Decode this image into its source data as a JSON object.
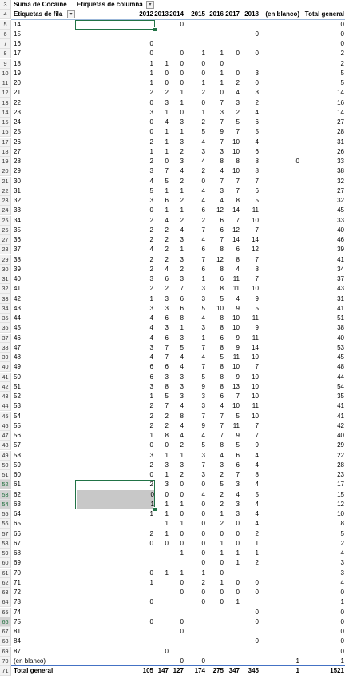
{
  "pivot": {
    "value_label": "Suma de Cocaine",
    "column_labels_header": "Etiquetas de columna",
    "row_labels_header": "Etiquetas de fila",
    "years": [
      "2012",
      "2013",
      "2014",
      "2015",
      "2016",
      "2017",
      "2018",
      "(en blanco)",
      "Total general"
    ],
    "header_row_numbers": [
      "3",
      "4"
    ],
    "rows": [
      {
        "rn": "5",
        "label": "14",
        "v": [
          "",
          "",
          "0",
          "",
          "",
          "",
          "",
          "",
          "0"
        ]
      },
      {
        "rn": "6",
        "label": "15",
        "v": [
          "",
          "",
          "",
          "",
          "",
          "",
          "0",
          "",
          "0"
        ]
      },
      {
        "rn": "7",
        "label": "16",
        "v": [
          "0",
          "",
          "",
          "",
          "",
          "",
          "",
          "",
          "0"
        ]
      },
      {
        "rn": "8",
        "label": "17",
        "v": [
          "0",
          "",
          "0",
          "1",
          "1",
          "0",
          "0",
          "",
          "2"
        ]
      },
      {
        "rn": "9",
        "label": "18",
        "v": [
          "1",
          "1",
          "0",
          "0",
          "0",
          "",
          "",
          "",
          "2"
        ]
      },
      {
        "rn": "10",
        "label": "19",
        "v": [
          "1",
          "0",
          "0",
          "0",
          "1",
          "0",
          "3",
          "",
          "5"
        ]
      },
      {
        "rn": "11",
        "label": "20",
        "v": [
          "1",
          "0",
          "0",
          "1",
          "1",
          "2",
          "0",
          "",
          "5"
        ]
      },
      {
        "rn": "12",
        "label": "21",
        "v": [
          "2",
          "2",
          "1",
          "2",
          "0",
          "4",
          "3",
          "",
          "14"
        ]
      },
      {
        "rn": "13",
        "label": "22",
        "v": [
          "0",
          "3",
          "1",
          "0",
          "7",
          "3",
          "2",
          "",
          "16"
        ]
      },
      {
        "rn": "14",
        "label": "23",
        "v": [
          "3",
          "1",
          "0",
          "1",
          "3",
          "2",
          "4",
          "",
          "14"
        ]
      },
      {
        "rn": "15",
        "label": "24",
        "v": [
          "0",
          "4",
          "3",
          "2",
          "7",
          "5",
          "6",
          "",
          "27"
        ]
      },
      {
        "rn": "16",
        "label": "25",
        "v": [
          "0",
          "1",
          "1",
          "5",
          "9",
          "7",
          "5",
          "",
          "28"
        ]
      },
      {
        "rn": "17",
        "label": "26",
        "v": [
          "2",
          "1",
          "3",
          "4",
          "7",
          "10",
          "4",
          "",
          "31"
        ]
      },
      {
        "rn": "18",
        "label": "27",
        "v": [
          "1",
          "1",
          "2",
          "3",
          "3",
          "10",
          "6",
          "",
          "26"
        ]
      },
      {
        "rn": "19",
        "label": "28",
        "v": [
          "2",
          "0",
          "3",
          "4",
          "8",
          "8",
          "8",
          "0",
          "33"
        ]
      },
      {
        "rn": "20",
        "label": "29",
        "v": [
          "3",
          "7",
          "4",
          "2",
          "4",
          "10",
          "8",
          "",
          "38"
        ]
      },
      {
        "rn": "21",
        "label": "30",
        "v": [
          "4",
          "5",
          "2",
          "0",
          "7",
          "7",
          "7",
          "",
          "32"
        ]
      },
      {
        "rn": "22",
        "label": "31",
        "v": [
          "5",
          "1",
          "1",
          "4",
          "3",
          "7",
          "6",
          "",
          "27"
        ]
      },
      {
        "rn": "23",
        "label": "32",
        "v": [
          "3",
          "6",
          "2",
          "4",
          "4",
          "8",
          "5",
          "",
          "32"
        ]
      },
      {
        "rn": "24",
        "label": "33",
        "v": [
          "0",
          "1",
          "1",
          "6",
          "12",
          "14",
          "11",
          "",
          "45"
        ]
      },
      {
        "rn": "25",
        "label": "34",
        "v": [
          "2",
          "4",
          "2",
          "2",
          "6",
          "7",
          "10",
          "",
          "33"
        ]
      },
      {
        "rn": "26",
        "label": "35",
        "v": [
          "2",
          "2",
          "4",
          "7",
          "6",
          "12",
          "7",
          "",
          "40"
        ]
      },
      {
        "rn": "27",
        "label": "36",
        "v": [
          "2",
          "2",
          "3",
          "4",
          "7",
          "14",
          "14",
          "",
          "46"
        ]
      },
      {
        "rn": "28",
        "label": "37",
        "v": [
          "4",
          "2",
          "1",
          "6",
          "8",
          "6",
          "12",
          "",
          "39"
        ]
      },
      {
        "rn": "29",
        "label": "38",
        "v": [
          "2",
          "2",
          "3",
          "7",
          "12",
          "8",
          "7",
          "",
          "41"
        ]
      },
      {
        "rn": "30",
        "label": "39",
        "v": [
          "2",
          "4",
          "2",
          "6",
          "8",
          "4",
          "8",
          "",
          "34"
        ]
      },
      {
        "rn": "31",
        "label": "40",
        "v": [
          "3",
          "6",
          "3",
          "1",
          "6",
          "11",
          "7",
          "",
          "37"
        ]
      },
      {
        "rn": "32",
        "label": "41",
        "v": [
          "2",
          "2",
          "7",
          "3",
          "8",
          "11",
          "10",
          "",
          "43"
        ]
      },
      {
        "rn": "33",
        "label": "42",
        "v": [
          "1",
          "3",
          "6",
          "3",
          "5",
          "4",
          "9",
          "",
          "31"
        ]
      },
      {
        "rn": "34",
        "label": "43",
        "v": [
          "3",
          "3",
          "6",
          "5",
          "10",
          "9",
          "5",
          "",
          "41"
        ]
      },
      {
        "rn": "35",
        "label": "44",
        "v": [
          "4",
          "6",
          "8",
          "4",
          "8",
          "10",
          "11",
          "",
          "51"
        ]
      },
      {
        "rn": "36",
        "label": "45",
        "v": [
          "4",
          "3",
          "1",
          "3",
          "8",
          "10",
          "9",
          "",
          "38"
        ]
      },
      {
        "rn": "37",
        "label": "46",
        "v": [
          "4",
          "6",
          "3",
          "1",
          "6",
          "9",
          "11",
          "",
          "40"
        ]
      },
      {
        "rn": "38",
        "label": "47",
        "v": [
          "3",
          "7",
          "5",
          "7",
          "8",
          "9",
          "14",
          "",
          "53"
        ]
      },
      {
        "rn": "39",
        "label": "48",
        "v": [
          "4",
          "7",
          "4",
          "4",
          "5",
          "11",
          "10",
          "",
          "45"
        ]
      },
      {
        "rn": "40",
        "label": "49",
        "v": [
          "6",
          "6",
          "4",
          "7",
          "8",
          "10",
          "7",
          "",
          "48"
        ]
      },
      {
        "rn": "41",
        "label": "50",
        "v": [
          "6",
          "3",
          "3",
          "5",
          "8",
          "9",
          "10",
          "",
          "44"
        ]
      },
      {
        "rn": "42",
        "label": "51",
        "v": [
          "3",
          "8",
          "3",
          "9",
          "8",
          "13",
          "10",
          "",
          "54"
        ]
      },
      {
        "rn": "43",
        "label": "52",
        "v": [
          "1",
          "5",
          "3",
          "3",
          "6",
          "7",
          "10",
          "",
          "35"
        ]
      },
      {
        "rn": "44",
        "label": "53",
        "v": [
          "2",
          "7",
          "4",
          "3",
          "4",
          "10",
          "11",
          "",
          "41"
        ]
      },
      {
        "rn": "45",
        "label": "54",
        "v": [
          "2",
          "2",
          "8",
          "7",
          "7",
          "5",
          "10",
          "",
          "41"
        ]
      },
      {
        "rn": "46",
        "label": "55",
        "v": [
          "2",
          "2",
          "4",
          "9",
          "7",
          "11",
          "7",
          "",
          "42"
        ]
      },
      {
        "rn": "47",
        "label": "56",
        "v": [
          "1",
          "8",
          "4",
          "4",
          "7",
          "9",
          "7",
          "",
          "40"
        ]
      },
      {
        "rn": "48",
        "label": "57",
        "v": [
          "0",
          "0",
          "2",
          "5",
          "8",
          "5",
          "9",
          "",
          "29"
        ]
      },
      {
        "rn": "49",
        "label": "58",
        "v": [
          "3",
          "1",
          "1",
          "3",
          "4",
          "6",
          "4",
          "",
          "22"
        ]
      },
      {
        "rn": "50",
        "label": "59",
        "v": [
          "2",
          "3",
          "3",
          "7",
          "3",
          "6",
          "4",
          "",
          "28"
        ]
      },
      {
        "rn": "51",
        "label": "60",
        "v": [
          "0",
          "1",
          "2",
          "3",
          "2",
          "7",
          "8",
          "",
          "23"
        ]
      },
      {
        "rn": "52",
        "label": "61",
        "v": [
          "2",
          "3",
          "0",
          "0",
          "5",
          "3",
          "4",
          "",
          "17"
        ]
      },
      {
        "rn": "53",
        "label": "62",
        "v": [
          "0",
          "0",
          "0",
          "4",
          "2",
          "4",
          "5",
          "",
          "15"
        ]
      },
      {
        "rn": "54",
        "label": "63",
        "v": [
          "1",
          "1",
          "1",
          "0",
          "2",
          "3",
          "4",
          "",
          "12"
        ]
      },
      {
        "rn": "55",
        "label": "64",
        "v": [
          "1",
          "1",
          "0",
          "0",
          "1",
          "3",
          "4",
          "",
          "10"
        ]
      },
      {
        "rn": "56",
        "label": "65",
        "v": [
          "",
          "1",
          "1",
          "0",
          "2",
          "0",
          "4",
          "",
          "8"
        ]
      },
      {
        "rn": "57",
        "label": "66",
        "v": [
          "2",
          "1",
          "0",
          "0",
          "0",
          "0",
          "2",
          "",
          "5"
        ]
      },
      {
        "rn": "58",
        "label": "67",
        "v": [
          "0",
          "0",
          "0",
          "0",
          "1",
          "0",
          "1",
          "",
          "2"
        ]
      },
      {
        "rn": "59",
        "label": "68",
        "v": [
          "",
          "",
          "1",
          "0",
          "1",
          "1",
          "1",
          "",
          "4"
        ]
      },
      {
        "rn": "60",
        "label": "69",
        "v": [
          "",
          "",
          "",
          "0",
          "0",
          "1",
          "2",
          "",
          "3"
        ]
      },
      {
        "rn": "61",
        "label": "70",
        "v": [
          "0",
          "1",
          "1",
          "1",
          "0",
          "",
          "",
          "",
          "3"
        ]
      },
      {
        "rn": "62",
        "label": "71",
        "v": [
          "1",
          "",
          "0",
          "2",
          "1",
          "0",
          "0",
          "",
          "4"
        ]
      },
      {
        "rn": "63",
        "label": "72",
        "v": [
          "",
          "",
          "0",
          "0",
          "0",
          "0",
          "0",
          "",
          "0"
        ]
      },
      {
        "rn": "64",
        "label": "73",
        "v": [
          "0",
          "",
          "",
          "0",
          "0",
          "1",
          "",
          "",
          "1"
        ]
      },
      {
        "rn": "65",
        "label": "74",
        "v": [
          "",
          "",
          "",
          "",
          "",
          "",
          "0",
          "",
          "0"
        ]
      },
      {
        "rn": "66",
        "label": "75",
        "v": [
          "0",
          "",
          "0",
          "",
          "",
          "",
          "0",
          "",
          "0"
        ]
      },
      {
        "rn": "67",
        "label": "81",
        "v": [
          "",
          "",
          "0",
          "",
          "",
          "",
          "",
          "",
          "0"
        ]
      },
      {
        "rn": "68",
        "label": "84",
        "v": [
          "",
          "",
          "",
          "",
          "",
          "",
          "0",
          "",
          "0"
        ]
      },
      {
        "rn": "69",
        "label": "87",
        "v": [
          "",
          "0",
          "",
          "",
          "",
          "",
          "",
          "",
          "0"
        ]
      },
      {
        "rn": "70",
        "label": "(en blanco)",
        "v": [
          "",
          "",
          "0",
          "0",
          "",
          "",
          "",
          "1",
          "1"
        ]
      }
    ],
    "total": {
      "rn": "71",
      "label": "Total general",
      "v": [
        "105",
        "147",
        "127",
        "174",
        "275",
        "347",
        "345",
        "1",
        "1521"
      ]
    }
  }
}
